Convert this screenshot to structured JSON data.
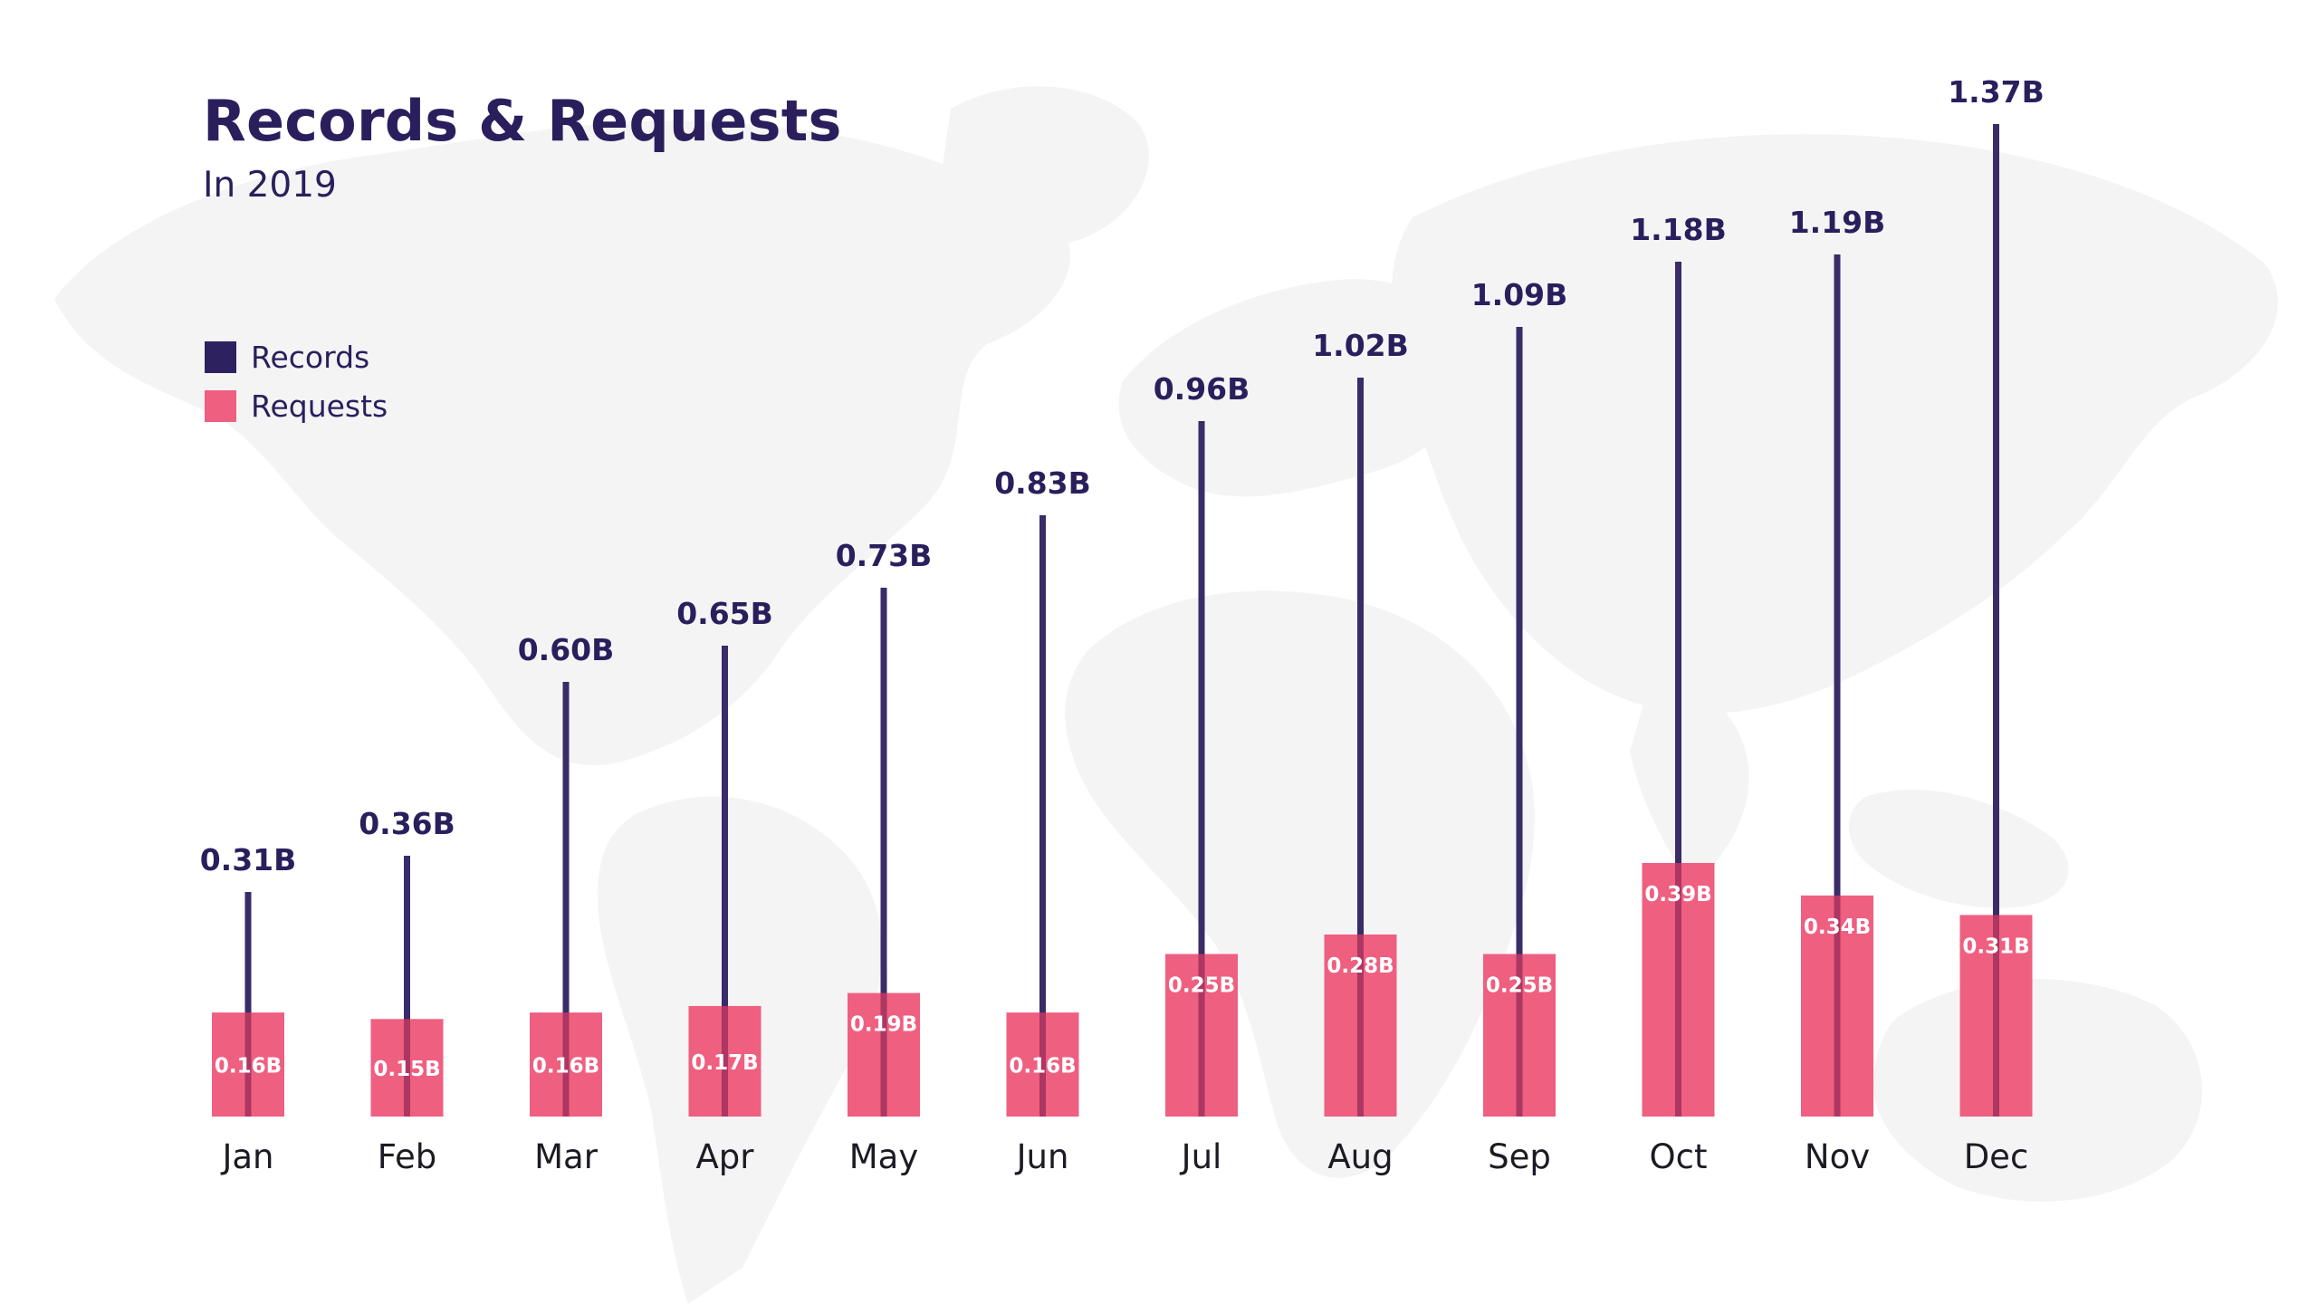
{
  "title": "Records & Requests",
  "subtitle": "In 2019",
  "colors": {
    "records": "#2e2160",
    "requests": "#ef5f80",
    "text": "#2a1f5c",
    "map": "#f5f5f6"
  },
  "legend": [
    {
      "label": "Records",
      "color": "#2e2160"
    },
    {
      "label": "Requests",
      "color": "#ef5f80"
    }
  ],
  "chart_data": {
    "type": "bar",
    "title": "Records & Requests",
    "subtitle": "In 2019",
    "categories": [
      "Jan",
      "Feb",
      "Mar",
      "Apr",
      "May",
      "Jun",
      "Jul",
      "Aug",
      "Sep",
      "Oct",
      "Nov",
      "Dec"
    ],
    "series": [
      {
        "name": "Records",
        "values": [
          0.31,
          0.36,
          0.6,
          0.65,
          0.73,
          0.83,
          0.96,
          1.02,
          1.09,
          1.18,
          1.19,
          1.37
        ],
        "labels": [
          "0.31B",
          "0.36B",
          "0.60B",
          "0.65B",
          "0.73B",
          "0.83B",
          "0.96B",
          "1.02B",
          "1.09B",
          "1.18B",
          "1.19B",
          "1.37B"
        ]
      },
      {
        "name": "Requests",
        "values": [
          0.16,
          0.15,
          0.16,
          0.17,
          0.19,
          0.16,
          0.25,
          0.28,
          0.25,
          0.39,
          0.34,
          0.31
        ],
        "labels": [
          "0.16B",
          "0.15B",
          "0.16B",
          "0.17B",
          "0.19B",
          "0.16B",
          "0.25B",
          "0.28B",
          "0.25B",
          "0.39B",
          "0.34B",
          "0.31B"
        ]
      }
    ],
    "unit": "B",
    "axes_visible": false,
    "grid": false,
    "legend_position": "top-left"
  }
}
